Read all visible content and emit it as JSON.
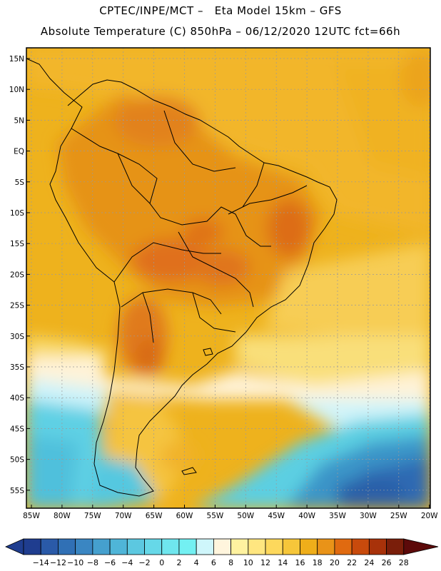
{
  "header": {
    "line1": "CPTEC/INPE/MCT –   Eta Model 15km – GFS",
    "line2": "Absolute Temperature (C) 850hPa – 06/12/2020 12UTC fct=66h"
  },
  "axes": {
    "lat_labels": [
      "15N",
      "10N",
      "5N",
      "EQ",
      "5S",
      "10S",
      "15S",
      "20S",
      "25S",
      "30S",
      "35S",
      "40S",
      "45S",
      "50S",
      "55S"
    ],
    "lon_labels": [
      "85W",
      "80W",
      "75W",
      "70W",
      "65W",
      "60W",
      "55W",
      "50W",
      "45W",
      "40W",
      "35W",
      "30W",
      "25W",
      "20W"
    ]
  },
  "colorbar": {
    "labels": [
      "-14",
      "-12",
      "-10",
      "-8",
      "-6",
      "-4",
      "-2",
      "0",
      "2",
      "4",
      "6",
      "8",
      "10",
      "12",
      "14",
      "16",
      "18",
      "20",
      "22",
      "24",
      "26",
      "28"
    ],
    "colors": [
      "#1f3d8f",
      "#2a5aa8",
      "#3070b5",
      "#3a86c2",
      "#45a0ce",
      "#4fb5d8",
      "#5cc8e0",
      "#66d8e8",
      "#6fe6ee",
      "#73f0f2",
      "#cff6fb",
      "#fff5dd",
      "#fff2a0",
      "#ffe680",
      "#fdd85c",
      "#f6c63a",
      "#efae1a",
      "#e99318",
      "#e06a10",
      "#c84a0c",
      "#a8320a",
      "#7a1e0a",
      "#5c0a0a"
    ]
  }
}
